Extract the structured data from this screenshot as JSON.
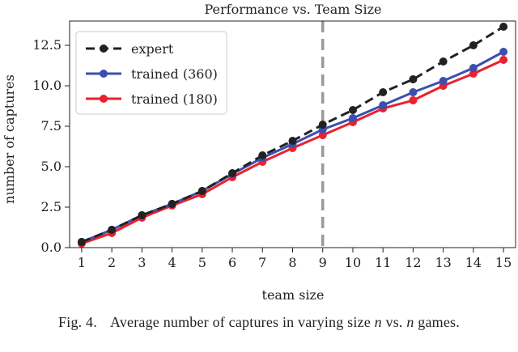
{
  "chart_data": {
    "type": "line",
    "title": "Performance vs. Team Size",
    "xlabel": "team size",
    "ylabel": "number of captures",
    "x": [
      1,
      2,
      3,
      4,
      5,
      6,
      7,
      8,
      9,
      10,
      11,
      12,
      13,
      14,
      15
    ],
    "xticks": [
      "1",
      "2",
      "3",
      "4",
      "5",
      "6",
      "7",
      "8",
      "9",
      "10",
      "11",
      "12",
      "13",
      "14",
      "15"
    ],
    "yticks": [
      "0.0",
      "2.5",
      "5.0",
      "7.5",
      "10.0",
      "12.5"
    ],
    "xlim": [
      0.6,
      15.4
    ],
    "ylim": [
      0,
      14.0
    ],
    "vline_x": 9,
    "legend_position": "top-left",
    "series": [
      {
        "name": "expert",
        "color": "#222222",
        "dash": true,
        "values": [
          0.35,
          1.1,
          2.0,
          2.7,
          3.5,
          4.6,
          5.7,
          6.6,
          7.6,
          8.5,
          9.6,
          10.4,
          11.5,
          12.5,
          13.65
        ]
      },
      {
        "name": "trained (360)",
        "color": "#3b4fb0",
        "dash": false,
        "values": [
          0.35,
          1.1,
          2.0,
          2.7,
          3.5,
          4.55,
          5.55,
          6.4,
          7.3,
          8.0,
          8.8,
          9.6,
          10.3,
          11.1,
          12.1
        ]
      },
      {
        "name": "trained (180)",
        "color": "#e8222e",
        "dash": false,
        "values": [
          0.25,
          0.9,
          1.85,
          2.6,
          3.3,
          4.35,
          5.3,
          6.15,
          6.95,
          7.75,
          8.6,
          9.1,
          10.0,
          10.75,
          11.6
        ]
      }
    ]
  },
  "caption": {
    "figure_label": "Fig. 4.",
    "text_before": "Average number of captures in varying size ",
    "var1": "n",
    "text_middle": " vs. ",
    "var2": "n",
    "text_after": " games."
  }
}
